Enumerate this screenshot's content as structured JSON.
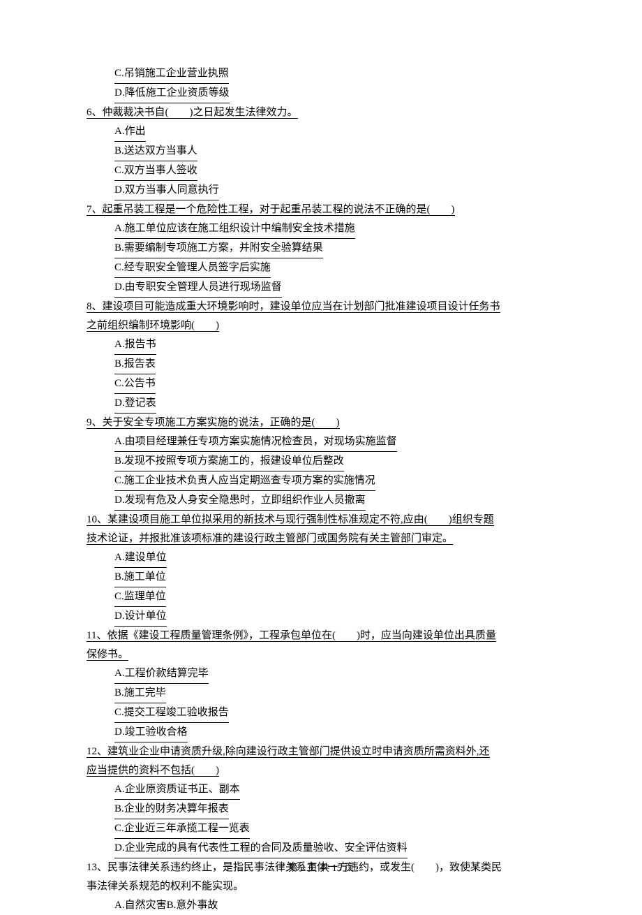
{
  "options_pre": [
    "C.吊销施工企业营业执照",
    "D.降低施工企业资质等级"
  ],
  "q6": {
    "text": "6、仲裁裁决书自(　　)之日起发生法律效力。",
    "options": [
      "A.作出",
      "B.送达双方当事人",
      "C.双方当事人签收",
      "D.双方当事人同意执行"
    ]
  },
  "q7": {
    "text": "7、起重吊装工程是一个危险性工程，对于起重吊装工程的说法不正确的是(　　)",
    "options": [
      "A.施工单位应该在施工组织设计中编制安全技术措施",
      "B.需要编制专项施工方案，并附安全验算结果",
      "C.经专职安全管理人员签字后实施",
      "D.由专职安全管理人员进行现场监督"
    ]
  },
  "q8": {
    "line1": "8、建设项目可能造成重大环境影响时，建设单位应当在计划部门批准建设项目设计任务书",
    "line2": "之前组织编制环境影响(　　)",
    "options": [
      "A.报告书",
      "B.报告表",
      "C.公告书",
      "D.登记表"
    ]
  },
  "q9": {
    "text": "9、关于安全专项施工方案实施的说法，正确的是(　　)",
    "options": [
      "A.由项目经理兼任专项方案实施情况检查员，对现场实施监督",
      "B.发现不按照专项方案施工的，报建设单位后整改",
      "C.施工企业技术负责人应当定期巡查专项方案的实施情况",
      "D.发现有危及人身安全隐患时，立即组织作业人员撤离"
    ]
  },
  "q10": {
    "line1": "10、某建设项目施工单位拟采用的新技术与现行强制性标准规定不符,应由(　　)组织专题",
    "line2": "技术论证，并报批准该项标准的建设行政主管部门或国务院有关主管部门审定。",
    "options": [
      "A.建设单位",
      "B.施工单位",
      "C.监理单位",
      "D.设计单位"
    ]
  },
  "q11": {
    "line1": "11、依据《建设工程质量管理条例》，工程承包单位在(　　)时，应当向建设单位出具质量",
    "line2": "保修书。",
    "options": [
      "A.工程价款结算完毕",
      "B.施工完毕",
      "C.提交工程竣工验收报告",
      "D.竣工验收合格"
    ]
  },
  "q12": {
    "line1": "12、建筑业企业申请资质升级,除向建设行政主管部门提供设立时申请资质所需资料外,还",
    "line2": "应当提供的资料不包括(　　)",
    "options": [
      "A.企业原资质证书正、副本",
      "B.企业的财务决算年报表",
      "C.企业近三年承揽工程一览表",
      "D.企业完成的具有代表性工程的合同及质量验收、安全评估资料"
    ]
  },
  "q13": {
    "line1": "13、民事法律关系违约终止，是指民事法律关系主体一方违约，或发生(　　)，致使某类民",
    "line2": "事法律关系规范的权利不能实现。",
    "options_line": "A.自然灾害B.意外事故"
  },
  "footer": "第 2 页 共 15 页"
}
